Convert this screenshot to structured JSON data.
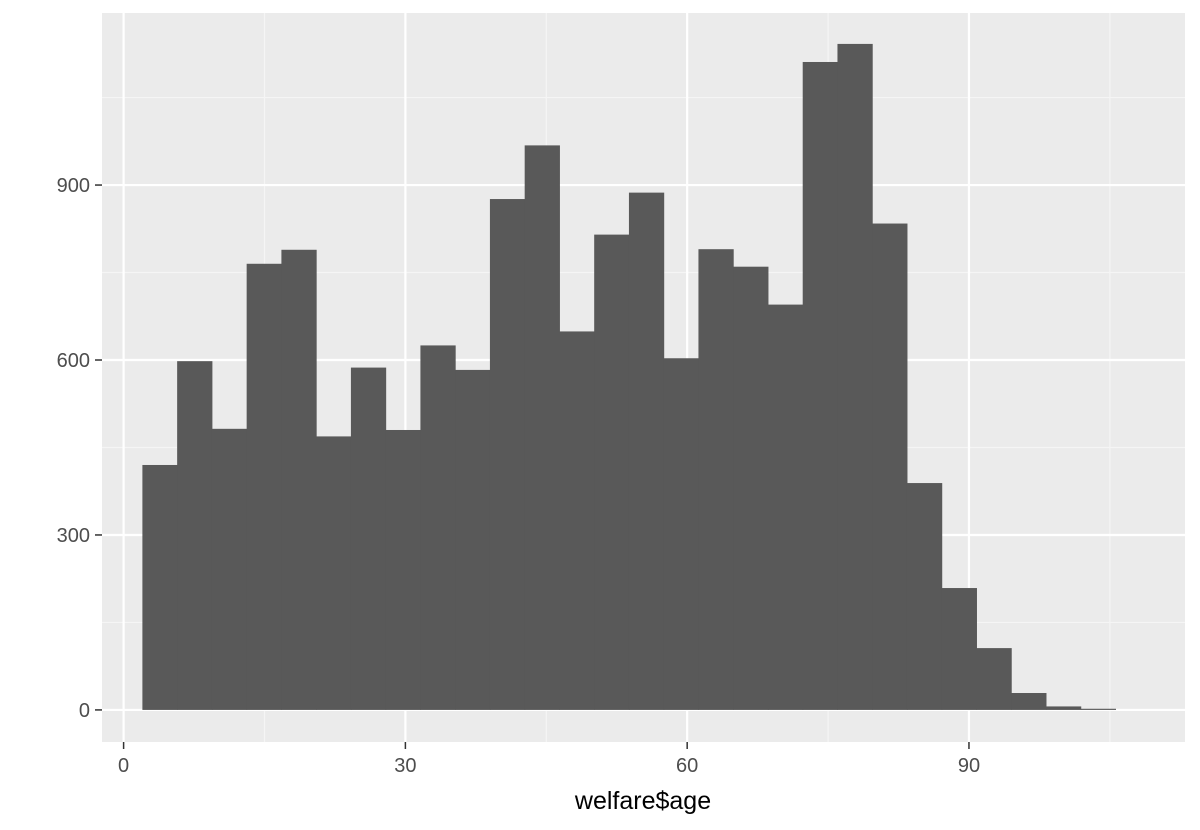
{
  "chart_data": {
    "type": "bar",
    "subtype": "histogram",
    "title": "",
    "xlabel": "welfare$age",
    "ylabel": "",
    "xlim": [
      -2.3,
      113
    ],
    "ylim": [
      -55,
      1195
    ],
    "x_ticks": [
      0,
      30,
      60,
      90
    ],
    "x_tick_labels": [
      "0",
      "30",
      "60",
      "90"
    ],
    "y_ticks": [
      0,
      300,
      600,
      900
    ],
    "y_tick_labels": [
      "0",
      "300",
      "600",
      "900"
    ],
    "x_minor_breaks": [
      15,
      45,
      75,
      105
    ],
    "y_minor_breaks": [
      150,
      450,
      750,
      1050
    ],
    "grid": true,
    "legend": "none",
    "bin_edges": [
      2,
      5.7,
      9.4,
      13.1,
      16.8,
      20.5,
      24.2,
      27.9,
      31.6,
      35.3,
      39,
      42.7,
      46.4,
      50.1,
      53.8,
      57.5,
      61.2,
      64.9,
      68.6,
      72.3,
      76,
      79.7,
      83.4,
      87.1,
      90.8,
      94.5,
      98.2,
      101.9,
      105.6
    ],
    "values": [
      420,
      598,
      482,
      765,
      789,
      469,
      587,
      480,
      625,
      583,
      876,
      968,
      649,
      815,
      887,
      603,
      790,
      760,
      695,
      1111,
      1142,
      834,
      389,
      209,
      106,
      29,
      6,
      2
    ]
  },
  "colors": {
    "panel_background": "#ebebeb",
    "grid_major": "#ffffff",
    "grid_minor": "#f5f5f5",
    "bar_fill": "#595959",
    "tick_mark": "#333333",
    "tick_label": "#4d4d4d",
    "axis_title": "#000000"
  }
}
